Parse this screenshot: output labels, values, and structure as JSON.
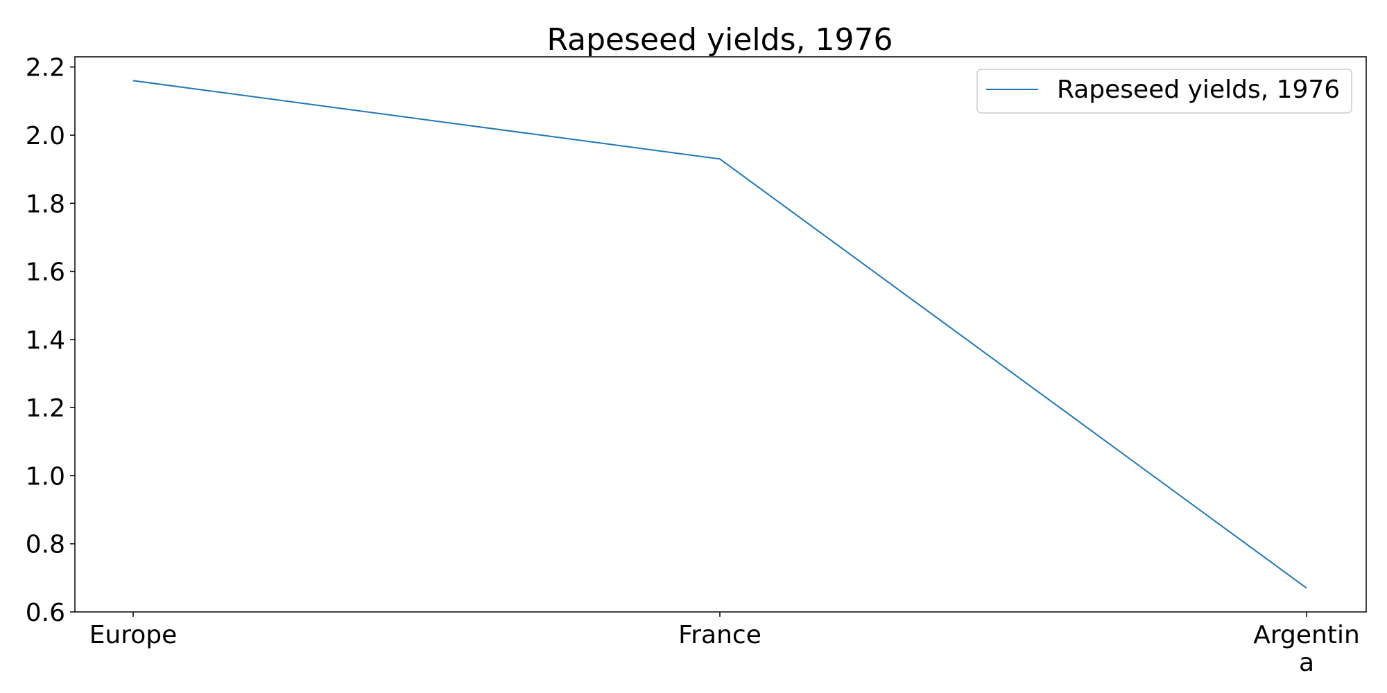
{
  "chart_data": {
    "type": "line",
    "title": "Rapeseed yields, 1976",
    "xlabel": "",
    "ylabel": "",
    "categories": [
      "Europe",
      "France",
      "Argentina"
    ],
    "category_label_lines": [
      [
        "Europe"
      ],
      [
        "France"
      ],
      [
        "Argentin",
        "a"
      ]
    ],
    "series": [
      {
        "name": "Rapeseed yields, 1976",
        "values": [
          2.16,
          1.93,
          0.67
        ],
        "color": "#1f77b4"
      }
    ],
    "ylim": [
      0.6,
      2.23
    ],
    "yticks": [
      0.6,
      0.8,
      1.0,
      1.2,
      1.4,
      1.6,
      1.8,
      2.0,
      2.2
    ],
    "ytick_labels": [
      "0.6",
      "0.8",
      "1.0",
      "1.2",
      "1.4",
      "1.6",
      "1.8",
      "2.0",
      "2.2"
    ],
    "grid": false,
    "legend_position": "top-right"
  }
}
